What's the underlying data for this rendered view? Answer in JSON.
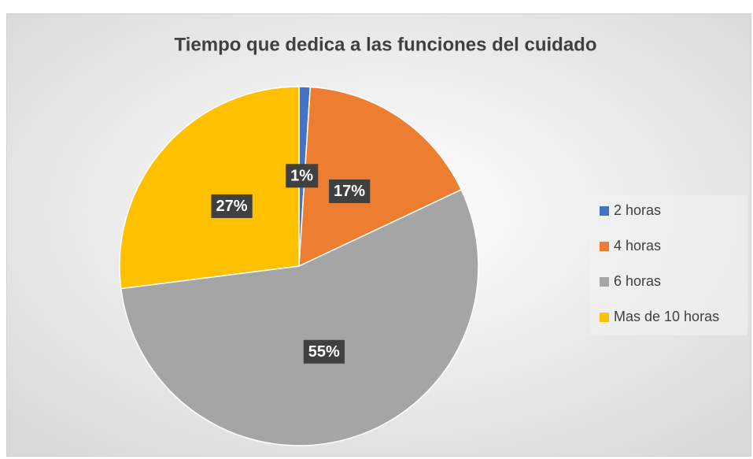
{
  "chart_data": {
    "type": "pie",
    "title": "Tiempo que dedica a las funciones del cuidado",
    "categories": [
      "2 horas",
      "4 horas",
      "6 horas",
      "Mas de 10 horas"
    ],
    "values": [
      1,
      17,
      55,
      27
    ],
    "value_labels": [
      "1%",
      "17%",
      "55%",
      "27%"
    ],
    "colors": [
      "#4472c4",
      "#ed7d31",
      "#a5a5a5",
      "#ffc000"
    ],
    "legend": "right"
  }
}
